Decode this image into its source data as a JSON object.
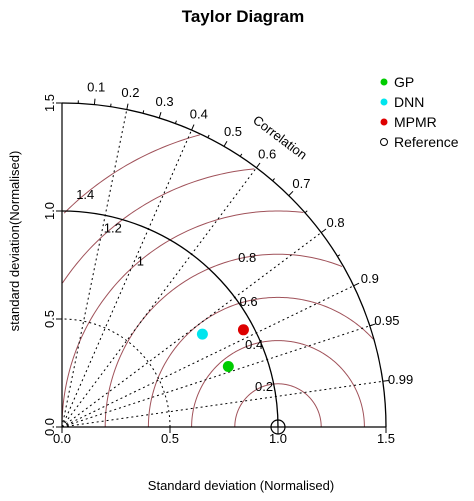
{
  "chart_data": {
    "type": "scatter",
    "title": "Taylor Diagram",
    "xlabel": "Standard deviation (Normalised)",
    "ylabel": "standard deviation(Normalised)",
    "corr_label": "Correlation",
    "sd_max": 1.5,
    "sd_ticks": [
      "0.0",
      "0.5",
      "1.0",
      "1.5"
    ],
    "corr_ticks": [
      "0.1",
      "0.2",
      "0.3",
      "0.4",
      "0.5",
      "0.6",
      "0.7",
      "0.8",
      "0.9",
      "0.95",
      "0.99"
    ],
    "rms_labels": [
      "0.2",
      "0.4",
      "0.6",
      "0.8",
      "1",
      "1.2",
      "1.4"
    ],
    "series": [
      {
        "name": "GP",
        "x": 0.77,
        "y": 0.28,
        "color": "#00cc00"
      },
      {
        "name": "DNN",
        "x": 0.65,
        "y": 0.43,
        "color": "#00e5ee"
      },
      {
        "name": "MPMR",
        "x": 0.84,
        "y": 0.45,
        "color": "#dd0000"
      }
    ],
    "reference": {
      "name": "Reference",
      "sd": 1.0
    },
    "legend_position": "top-right"
  }
}
